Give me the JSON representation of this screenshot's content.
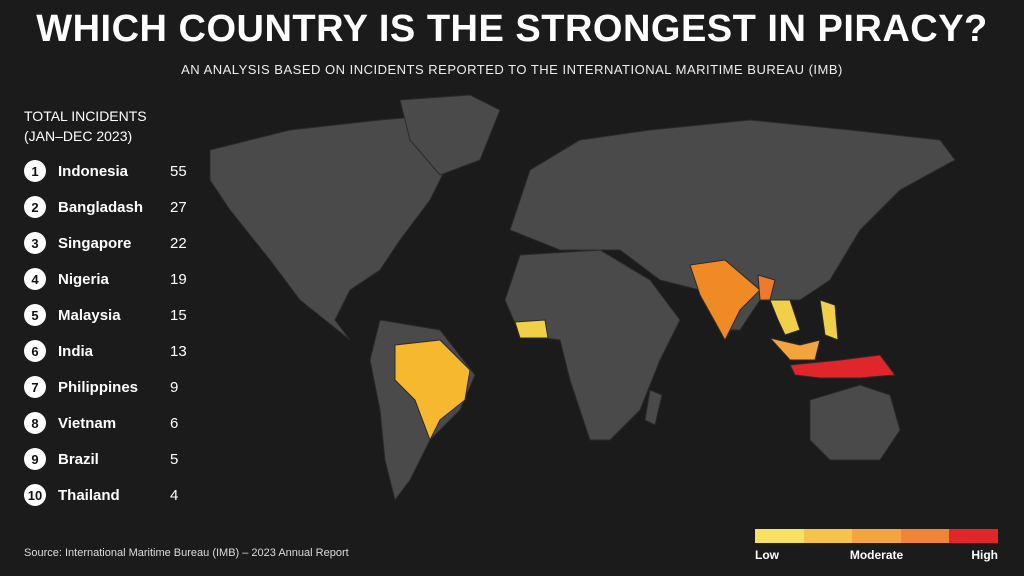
{
  "header": {
    "title": "WHICH COUNTRY IS THE STRONGEST IN PIRACY?",
    "subtitle": "AN ANALYSIS BASED ON INCIDENTS REPORTED TO THE INTERNATIONAL MARITIME BUREAU (IMB)"
  },
  "ranking": {
    "title": "TOTAL INCIDENTS",
    "period": "(JAN–DEC 2023)",
    "rows": [
      {
        "rank": 1,
        "country": "Indonesia",
        "incidents": 55
      },
      {
        "rank": 2,
        "country": "Bangladash",
        "incidents": 27
      },
      {
        "rank": 3,
        "country": "Singapore",
        "incidents": 22
      },
      {
        "rank": 4,
        "country": "Nigeria",
        "incidents": 19
      },
      {
        "rank": 5,
        "country": "Malaysia",
        "incidents": 15
      },
      {
        "rank": 6,
        "country": "India",
        "incidents": 13
      },
      {
        "rank": 7,
        "country": "Philippines",
        "incidents": 9
      },
      {
        "rank": 8,
        "country": "Vietnam",
        "incidents": 6
      },
      {
        "rank": 9,
        "country": "Brazil",
        "incidents": 5
      },
      {
        "rank": 10,
        "country": "Thailand",
        "incidents": 4
      }
    ]
  },
  "legend": {
    "colors": [
      "#f7e062",
      "#f5c24a",
      "#f2a43e",
      "#ee8437",
      "#e0262b"
    ],
    "labels": [
      "Low",
      "Moderate",
      "High"
    ]
  },
  "source": "Source: International Maritime Bureau (IMB) – 2023 Annual Report"
}
